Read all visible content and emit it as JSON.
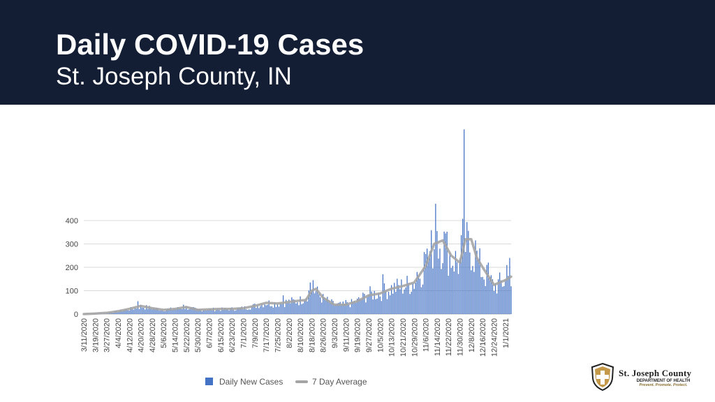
{
  "header": {
    "title": "Daily COVID-19 Cases",
    "subtitle": "St. Joseph County, IN"
  },
  "logo": {
    "line1": "St. Joseph County",
    "line2": "DEPARTMENT OF HEALTH",
    "line3": "Prevent. Promote. Protect."
  },
  "colors": {
    "header_bg": "#131d34",
    "bar": "#4472c4",
    "average_line": "#a5a5a5"
  },
  "chart_data": {
    "type": "bar",
    "title": "",
    "xlabel": "",
    "ylabel": "",
    "ylim": [
      0,
      400
    ],
    "yticks": [
      0,
      100,
      200,
      300,
      400
    ],
    "grid": true,
    "legend_placement": "bottom",
    "x_start": "3/11/2020",
    "x_end": "1/5/2021",
    "x_tick_labels": [
      "3/11/2020",
      "3/19/2020",
      "3/27/2020",
      "4/4/2020",
      "4/12/2020",
      "4/20/2020",
      "4/28/2020",
      "5/6/2020",
      "5/14/2020",
      "5/22/2020",
      "5/30/2020",
      "6/7/2020",
      "6/15/2020",
      "6/23/2020",
      "7/1/2020",
      "7/9/2020",
      "7/17/2020",
      "7/25/2020",
      "8/2/2020",
      "8/10/2020",
      "8/18/2020",
      "8/26/2020",
      "9/3/2020",
      "9/11/2020",
      "9/19/2020",
      "9/27/2020",
      "10/5/2020",
      "10/13/2020",
      "10/21/2020",
      "10/29/2020",
      "11/6/2020",
      "11/14/2020",
      "11/22/2020",
      "11/30/2020",
      "12/8/2020",
      "12/16/2020",
      "12/24/2020",
      "1/1/2021"
    ],
    "series": [
      {
        "name": "Daily New Cases",
        "type": "bar",
        "anchors": [
          [
            "3/11/2020",
            0
          ],
          [
            "3/19/2020",
            2
          ],
          [
            "3/27/2020",
            5
          ],
          [
            "4/4/2020",
            12
          ],
          [
            "4/12/2020",
            20
          ],
          [
            "4/20/2020",
            32
          ],
          [
            "4/28/2020",
            25
          ],
          [
            "5/6/2020",
            18
          ],
          [
            "5/14/2020",
            22
          ],
          [
            "5/22/2020",
            28
          ],
          [
            "5/30/2020",
            18
          ],
          [
            "6/7/2020",
            20
          ],
          [
            "6/15/2020",
            20
          ],
          [
            "6/23/2020",
            22
          ],
          [
            "7/1/2020",
            25
          ],
          [
            "7/9/2020",
            35
          ],
          [
            "7/17/2020",
            48
          ],
          [
            "7/25/2020",
            45
          ],
          [
            "8/2/2020",
            52
          ],
          [
            "8/10/2020",
            58
          ],
          [
            "8/18/2020",
            105
          ],
          [
            "8/21/2020",
            95
          ],
          [
            "8/26/2020",
            65
          ],
          [
            "9/3/2020",
            40
          ],
          [
            "9/11/2020",
            38
          ],
          [
            "9/19/2020",
            55
          ],
          [
            "9/27/2020",
            85
          ],
          [
            "10/5/2020",
            88
          ],
          [
            "10/13/2020",
            110
          ],
          [
            "10/21/2020",
            118
          ],
          [
            "10/29/2020",
            135
          ],
          [
            "11/6/2020",
            215
          ],
          [
            "11/12/2020",
            300
          ],
          [
            "11/18/2020",
            310
          ],
          [
            "11/24/2020",
            240
          ],
          [
            "11/30/2020",
            215
          ],
          [
            "12/2/2020",
            300
          ],
          [
            "12/8/2020",
            280
          ],
          [
            "12/16/2020",
            180
          ],
          [
            "12/24/2020",
            120
          ],
          [
            "1/1/2021",
            140
          ],
          [
            "1/5/2021",
            170
          ]
        ],
        "spikes": [
          [
            "4/18/2020",
            55
          ],
          [
            "5/20/2020",
            40
          ],
          [
            "7/29/2020",
            80
          ],
          [
            "8/17/2020",
            135
          ],
          [
            "8/19/2020",
            145
          ],
          [
            "9/11/2020",
            60
          ],
          [
            "10/7/2020",
            170
          ],
          [
            "10/31/2020",
            180
          ],
          [
            "11/5/2020",
            265
          ],
          [
            "11/7/2020",
            280
          ],
          [
            "11/13/2020",
            472
          ],
          [
            "11/14/2020",
            355
          ],
          [
            "11/20/2020",
            345
          ],
          [
            "12/3/2020",
            790
          ],
          [
            "12/11/2020",
            315
          ],
          [
            "12/20/2020",
            220
          ],
          [
            "1/2/2021",
            210
          ],
          [
            "1/4/2021",
            240
          ]
        ]
      },
      {
        "name": "7 Day Average",
        "type": "line",
        "points": [
          [
            "3/11/2020",
            0
          ],
          [
            "3/19/2020",
            2
          ],
          [
            "3/27/2020",
            5
          ],
          [
            "4/4/2020",
            12
          ],
          [
            "4/12/2020",
            22
          ],
          [
            "4/20/2020",
            35
          ],
          [
            "4/28/2020",
            25
          ],
          [
            "5/6/2020",
            18
          ],
          [
            "5/14/2020",
            22
          ],
          [
            "5/22/2020",
            30
          ],
          [
            "5/30/2020",
            18
          ],
          [
            "6/7/2020",
            20
          ],
          [
            "6/15/2020",
            22
          ],
          [
            "6/23/2020",
            22
          ],
          [
            "7/1/2020",
            25
          ],
          [
            "7/9/2020",
            35
          ],
          [
            "7/17/2020",
            48
          ],
          [
            "7/25/2020",
            45
          ],
          [
            "8/2/2020",
            52
          ],
          [
            "8/10/2020",
            58
          ],
          [
            "8/14/2020",
            60
          ],
          [
            "8/18/2020",
            100
          ],
          [
            "8/21/2020",
            108
          ],
          [
            "8/26/2020",
            70
          ],
          [
            "9/3/2020",
            40
          ],
          [
            "9/11/2020",
            40
          ],
          [
            "9/19/2020",
            55
          ],
          [
            "9/27/2020",
            80
          ],
          [
            "10/5/2020",
            88
          ],
          [
            "10/13/2020",
            108
          ],
          [
            "10/21/2020",
            120
          ],
          [
            "10/29/2020",
            135
          ],
          [
            "11/6/2020",
            205
          ],
          [
            "11/12/2020",
            300
          ],
          [
            "11/18/2020",
            315
          ],
          [
            "11/24/2020",
            250
          ],
          [
            "11/30/2020",
            220
          ],
          [
            "12/4/2020",
            320
          ],
          [
            "12/8/2020",
            320
          ],
          [
            "12/12/2020",
            240
          ],
          [
            "12/16/2020",
            200
          ],
          [
            "12/24/2020",
            125
          ],
          [
            "1/1/2021",
            145
          ],
          [
            "1/5/2021",
            160
          ]
        ]
      }
    ]
  }
}
